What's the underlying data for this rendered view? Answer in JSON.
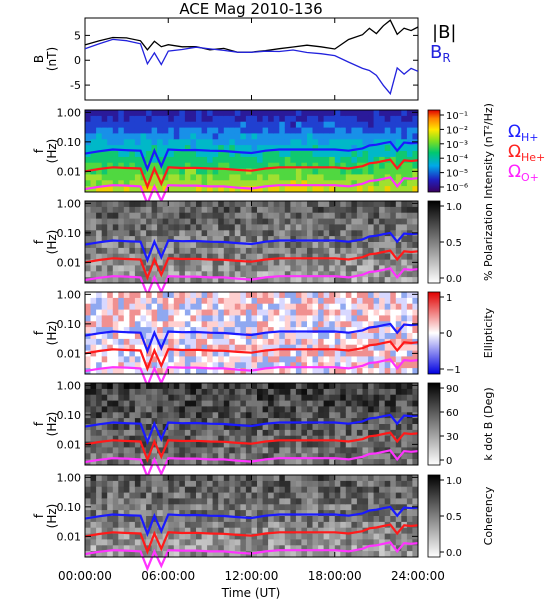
{
  "title": "ACE Mag 2010-136",
  "x_axis": {
    "label": "Time (UT)",
    "ticks": [
      "00:00:00",
      "06:00:00",
      "12:00:00",
      "18:00:00",
      "24:00:00"
    ],
    "tick_hours": [
      0,
      6,
      12,
      18,
      24
    ],
    "range_hours": [
      0,
      24
    ]
  },
  "legend_top": {
    "b_total": "|B|",
    "b_r": "B",
    "b_r_sub": "R"
  },
  "legend_freq": [
    {
      "symbol": "Ω",
      "sub": "H+",
      "color": "#2222ff"
    },
    {
      "symbol": "Ω",
      "sub": "He+",
      "color": "#ff2222"
    },
    {
      "symbol": "Ω",
      "sub": "O+",
      "color": "#ff22ff"
    }
  ],
  "panels": [
    {
      "id": "b",
      "ylabel_line1": "B",
      "ylabel_line2": "(nT)",
      "yticks": [
        "5",
        "0",
        "-5"
      ],
      "ytick_values": [
        5,
        0,
        -5
      ],
      "ylim": [
        -8,
        8.5
      ]
    },
    {
      "id": "intensity",
      "ylabel_line1": "f",
      "ylabel_line2": "(Hz)",
      "yticks": [
        "1.00",
        "0.10",
        "0.01"
      ],
      "colorbar_label": "Intensity (nT²/Hz)",
      "colorbar_ticks": [
        "10⁻¹",
        "10⁻²",
        "10⁻³",
        "10⁻⁴",
        "10⁻⁵",
        "10⁻⁶"
      ],
      "colorscale": "rainbow"
    },
    {
      "id": "polarization",
      "ylabel_line1": "f",
      "ylabel_line2": "(Hz)",
      "yticks": [
        "1.00",
        "0.10",
        "0.01"
      ],
      "colorbar_label": "% Polarization",
      "colorbar_ticks": [
        "1.0",
        "0.5",
        "0.0"
      ],
      "colorscale": "gray"
    },
    {
      "id": "ellipticity",
      "ylabel_line1": "f",
      "ylabel_line2": "(Hz)",
      "yticks": [
        "1.00",
        "0.10",
        "0.01"
      ],
      "colorbar_label": "Ellipticity",
      "colorbar_ticks": [
        "1",
        "0",
        "−1"
      ],
      "colorscale": "bluewhitered"
    },
    {
      "id": "kdotb",
      "ylabel_line1": "f",
      "ylabel_line2": "(Hz)",
      "yticks": [
        "1.00",
        "0.10",
        "0.01"
      ],
      "colorbar_label": "k dot B (Deg)",
      "colorbar_ticks": [
        "90",
        "60",
        "30",
        "0"
      ],
      "colorscale": "gray"
    },
    {
      "id": "coherency",
      "ylabel_line1": "f",
      "ylabel_line2": "(Hz)",
      "yticks": [
        "1.00",
        "0.10",
        "0.01"
      ],
      "colorbar_label": "Coherency",
      "colorbar_ticks": [
        "1.0",
        "0.5",
        "0.0"
      ],
      "colorscale": "gray"
    }
  ],
  "colors": {
    "b_total": "#000000",
    "b_r": "#2222dd",
    "h_plus": "#1a1aff",
    "he_plus": "#ff1a1a",
    "o_plus": "#ff33ff"
  },
  "chart_data": [
    {
      "type": "line",
      "title": "ACE Mag 2010-136",
      "ylabel": "B (nT)",
      "xlabel": "Time (UT)",
      "x_hours": [
        0,
        1,
        2,
        3,
        4,
        4.5,
        5,
        5.5,
        6,
        7,
        8,
        9,
        10,
        11,
        12,
        13,
        14,
        15,
        16,
        17,
        18,
        19,
        20,
        20.5,
        21,
        21.5,
        22,
        22.5,
        23,
        23.5,
        24
      ],
      "series": [
        {
          "name": "|B|",
          "values": [
            3,
            4,
            4.5,
            4.2,
            3.8,
            2,
            4,
            2.5,
            3,
            2.5,
            2.6,
            2.2,
            2.2,
            1.8,
            1.6,
            2.1,
            2.5,
            2.5,
            2.8,
            2.5,
            2.5,
            4.2,
            5,
            6.5,
            5.5,
            7,
            7.8,
            5,
            6.5,
            6,
            6.5
          ]
        },
        {
          "name": "B",
          "values": [
            2.5,
            3.5,
            4.3,
            4,
            3.3,
            -1,
            1.5,
            -1,
            2,
            2.2,
            2.4,
            2.1,
            2.1,
            1.6,
            1.4,
            1.7,
            2,
            2,
            1.8,
            1.2,
            1,
            -0.5,
            -1.5,
            -2,
            -3,
            -5,
            -7,
            -1.5,
            -2.5,
            -1.5,
            -2
          ]
        }
      ],
      "ylim": [
        -8,
        8.5
      ]
    },
    {
      "type": "heatmap",
      "title": "",
      "ylabel": "f (Hz)",
      "note_series": "gyrofrequency overlays (Hz)",
      "x_hours": [
        0,
        1,
        2,
        3,
        4,
        4.5,
        5,
        5.5,
        6,
        7,
        8,
        9,
        10,
        11,
        12,
        13,
        14,
        15,
        16,
        17,
        18,
        19,
        20,
        20.5,
        21,
        21.5,
        22,
        22.5,
        23,
        23.5,
        24
      ],
      "series": [
        {
          "name": "ΩH+",
          "values": [
            0.04,
            0.048,
            0.055,
            0.052,
            0.05,
            0.012,
            0.05,
            0.015,
            0.055,
            0.052,
            0.053,
            0.05,
            0.049,
            0.045,
            0.042,
            0.05,
            0.055,
            0.055,
            0.055,
            0.055,
            0.055,
            0.05,
            0.06,
            0.075,
            0.08,
            0.09,
            0.1,
            0.05,
            0.095,
            0.09,
            0.095
          ]
        },
        {
          "name": "ΩHe+",
          "values": [
            0.01,
            0.012,
            0.0137,
            0.013,
            0.0125,
            0.003,
            0.0125,
            0.0038,
            0.0137,
            0.013,
            0.0132,
            0.0125,
            0.0122,
            0.0112,
            0.0105,
            0.0125,
            0.0137,
            0.0137,
            0.0137,
            0.0137,
            0.0137,
            0.0125,
            0.015,
            0.0188,
            0.02,
            0.0225,
            0.025,
            0.0125,
            0.0238,
            0.0225,
            0.0238
          ]
        },
        {
          "name": "ΩO+",
          "values": [
            0.0025,
            0.003,
            0.0034,
            0.0033,
            0.0031,
            0.0008,
            0.0031,
            0.001,
            0.0034,
            0.0033,
            0.0033,
            0.0031,
            0.0031,
            0.0028,
            0.0026,
            0.0031,
            0.0034,
            0.0034,
            0.0034,
            0.0034,
            0.0034,
            0.0031,
            0.0038,
            0.0047,
            0.005,
            0.0056,
            0.0063,
            0.0031,
            0.0059,
            0.0056,
            0.0059
          ]
        }
      ],
      "ylim": [
        0.002,
        1.2
      ],
      "yscale": "log"
    }
  ]
}
